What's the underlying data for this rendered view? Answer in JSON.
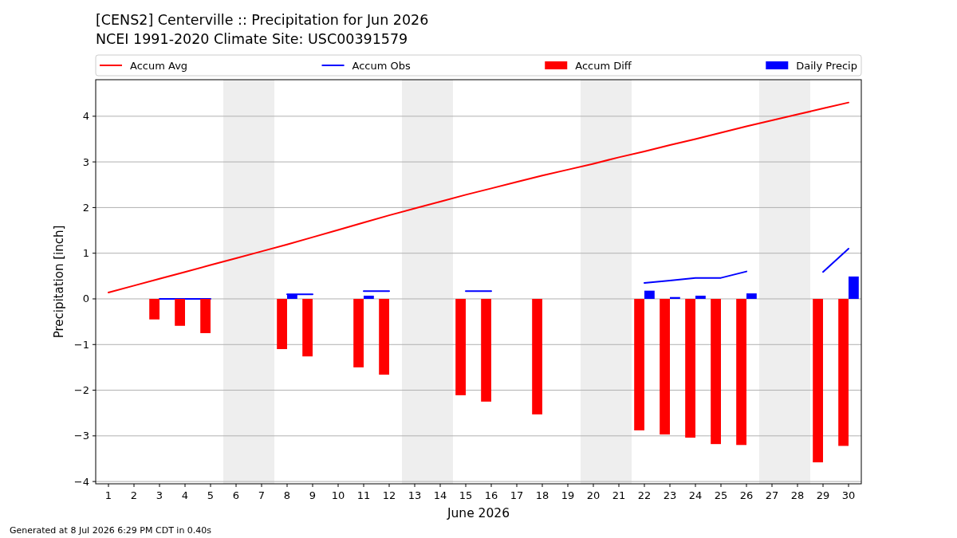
{
  "chart_data": {
    "type": "bar",
    "title": "[CENS2] Centerville :: Precipitation for Jun 2026",
    "subtitle": "NCEI 1991-2020 Climate Site: USC00391579",
    "xlabel": "June 2026",
    "ylabel": "Precipitation [inch]",
    "x": [
      1,
      2,
      3,
      4,
      5,
      6,
      7,
      8,
      9,
      10,
      11,
      12,
      13,
      14,
      15,
      16,
      17,
      18,
      19,
      20,
      21,
      22,
      23,
      24,
      25,
      26,
      27,
      28,
      29,
      30
    ],
    "series": [
      {
        "name": "Accum Avg",
        "type": "line",
        "color": "#ff0000",
        "values": [
          0.14,
          0.29,
          0.44,
          0.59,
          0.74,
          0.89,
          1.04,
          1.19,
          1.35,
          1.51,
          1.67,
          1.83,
          1.98,
          2.13,
          2.28,
          2.42,
          2.56,
          2.7,
          2.83,
          2.96,
          3.1,
          3.23,
          3.37,
          3.5,
          3.64,
          3.78,
          3.91,
          4.04,
          4.17,
          4.3
        ]
      },
      {
        "name": "Accum Obs",
        "type": "line",
        "color": "#0000ff",
        "values": [
          null,
          null,
          0,
          0,
          0,
          null,
          null,
          0.1,
          0.1,
          null,
          0.17,
          0.17,
          null,
          null,
          0.17,
          0.17,
          null,
          null,
          null,
          null,
          null,
          0.35,
          0.4,
          0.46,
          0.46,
          0.6,
          null,
          null,
          0.59,
          1.1
        ]
      },
      {
        "name": "Accum Diff",
        "color": "#ff0000",
        "values": [
          null,
          null,
          -0.45,
          -0.59,
          -0.75,
          null,
          null,
          -1.1,
          -1.26,
          null,
          -1.5,
          -1.66,
          null,
          null,
          -2.11,
          -2.25,
          null,
          -2.53,
          null,
          null,
          null,
          -2.88,
          -2.97,
          -3.04,
          -3.18,
          -3.2,
          null,
          null,
          -3.58,
          -3.22
        ]
      },
      {
        "name": "Daily Precip",
        "color": "#0000ff",
        "values": [
          null,
          null,
          null,
          null,
          null,
          null,
          null,
          0.1,
          null,
          null,
          0.07,
          null,
          null,
          null,
          null,
          null,
          null,
          null,
          null,
          null,
          null,
          0.18,
          0.04,
          0.07,
          null,
          0.12,
          null,
          null,
          null,
          0.49
        ]
      }
    ],
    "xlim": [
      0.5,
      30.5
    ],
    "xticks": [
      1,
      2,
      3,
      4,
      5,
      6,
      7,
      8,
      9,
      10,
      11,
      12,
      13,
      14,
      15,
      16,
      17,
      18,
      19,
      20,
      21,
      22,
      23,
      24,
      25,
      26,
      27,
      28,
      29,
      30
    ],
    "ylim": [
      -4.05,
      4.8
    ],
    "yticks": [
      {
        "value": -4,
        "label": "−4"
      },
      {
        "value": -3,
        "label": "−3"
      },
      {
        "value": -2,
        "label": "−2"
      },
      {
        "value": -1,
        "label": "−1"
      },
      0,
      1,
      2,
      3,
      4
    ],
    "bands": [
      {
        "axis": "x",
        "from": 5.5,
        "to": 7.5,
        "color": "#eeeeee"
      },
      {
        "axis": "x",
        "from": 12.5,
        "to": 14.5,
        "color": "#eeeeee"
      },
      {
        "axis": "x",
        "from": 19.5,
        "to": 21.5,
        "color": "#eeeeee"
      },
      {
        "axis": "x",
        "from": 26.5,
        "to": 28.5,
        "color": "#eeeeee"
      }
    ],
    "grid": "y",
    "legend": "top",
    "annotations": [
      "Generated at 8 Jul 2026 6:29 PM CDT in 0.40s"
    ]
  }
}
